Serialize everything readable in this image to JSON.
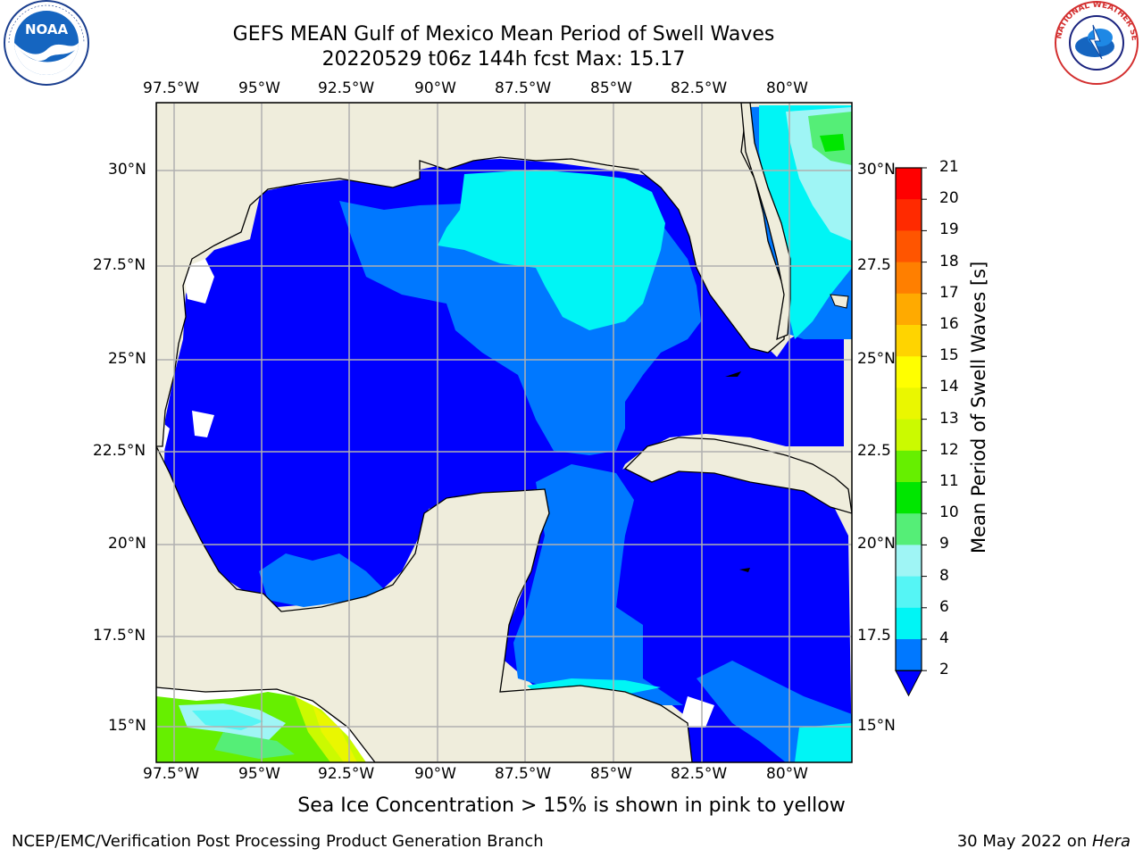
{
  "title": {
    "line1": "GEFS MEAN Gulf of Mexico Mean Period of Swell Waves",
    "line2": "20220529 t06z 144h fcst   Max: 15.17"
  },
  "axes": {
    "lon_labels": [
      "97.5°W",
      "95°W",
      "92.5°W",
      "90°W",
      "87.5°W",
      "85°W",
      "82.5°W",
      "80°W"
    ],
    "lat_labels_left": [
      "30°N",
      "27.5°N",
      "25°N",
      "22.5°N",
      "20°N",
      "17.5°N",
      "15°N"
    ],
    "lat_labels_right": [
      "30°N",
      "27.5",
      "25°N",
      "22.5",
      "20°N",
      "17.5",
      "15°N"
    ]
  },
  "colorbar": {
    "label": "Mean Period of Swell Waves [s]",
    "ticks": [
      "21",
      "20",
      "19",
      "18",
      "17",
      "16",
      "15",
      "14",
      "13",
      "12",
      "11",
      "10",
      "9",
      "8",
      "6",
      "4",
      "2"
    ],
    "colors": [
      "#ff0000",
      "#ff2a00",
      "#ff5500",
      "#ff7f00",
      "#ffaa00",
      "#ffd400",
      "#ffff00",
      "#eaf700",
      "#cbfa00",
      "#66ef00",
      "#00e600",
      "#55ee77",
      "#9ff5f5",
      "#55f5f5",
      "#00f5f5",
      "#0078ff",
      "#0000ff"
    ]
  },
  "caption": "Sea Ice Concentration > 15% is shown in pink to yellow",
  "footer": {
    "left": "NCEP/EMC/Verification Post Processing Product Generation Branch",
    "right_prefix": "30 May 2022 on ",
    "right_italic": "Hera"
  },
  "logos": {
    "left": "noaa-logo",
    "right": "nws-logo",
    "noaa_text": "NOAA",
    "nws_text": "NATIONAL WEATHER SERVICE"
  }
}
